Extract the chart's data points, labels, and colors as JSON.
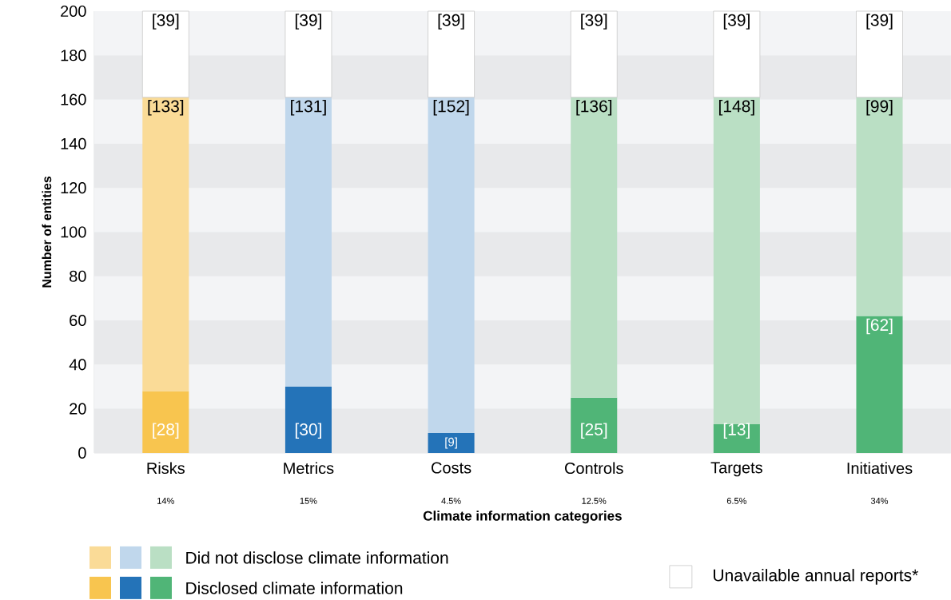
{
  "chart_data": {
    "type": "bar",
    "stacked": true,
    "xlabel": "Climate information categories",
    "ylabel": "Number of entities",
    "categories": [
      "Risks",
      "Metrics",
      "Costs",
      "Controls",
      "Targets",
      "Initiatives"
    ],
    "series": [
      {
        "name": "Disclosed climate information",
        "colors": [
          "#f8c54f",
          "#2473b8",
          "#2473b8",
          "#50b577",
          "#50b577",
          "#50b577"
        ],
        "values": [
          28,
          30,
          9,
          25,
          13,
          62
        ],
        "value_labels": [
          "[28]",
          "[30]",
          "[9]",
          "[25]",
          "[13]",
          "[62]"
        ]
      },
      {
        "name": "Did not disclose climate information",
        "colors": [
          "#fadb97",
          "#c0d7ec",
          "#c0d7ec",
          "#badfc4",
          "#badfc4",
          "#badfc4"
        ],
        "values": [
          133,
          131,
          152,
          136,
          148,
          99
        ],
        "value_labels": [
          "[133]",
          "[131]",
          "[152]",
          "[136]",
          "[148]",
          "[99]"
        ]
      },
      {
        "name": "Unavailable annual reports*",
        "colors": [
          "#ffffff",
          "#ffffff",
          "#ffffff",
          "#ffffff",
          "#ffffff",
          "#ffffff"
        ],
        "values": [
          39,
          39,
          39,
          39,
          39,
          39
        ],
        "value_labels": [
          "[39]",
          "[39]",
          "[39]",
          "[39]",
          "[39]",
          "[39]"
        ]
      }
    ],
    "ylim": [
      0,
      200
    ],
    "yticks": [
      0,
      20,
      40,
      60,
      80,
      100,
      120,
      140,
      160,
      180,
      200
    ],
    "bands": [
      {
        "axis": "y",
        "from": 0,
        "to": 20,
        "color": "#e8e9eb"
      },
      {
        "axis": "y",
        "from": 40,
        "to": 60,
        "color": "#e8e9eb"
      },
      {
        "axis": "y",
        "from": 80,
        "to": 100,
        "color": "#e8e9eb"
      },
      {
        "axis": "y",
        "from": 120,
        "to": 140,
        "color": "#e8e9eb"
      },
      {
        "axis": "y",
        "from": 160,
        "to": 180,
        "color": "#e8e9eb"
      }
    ],
    "annotations": [
      "14%",
      "15%",
      "4.5%",
      "12.5%",
      "6.5%",
      "34%"
    ],
    "legend": "bottom"
  }
}
